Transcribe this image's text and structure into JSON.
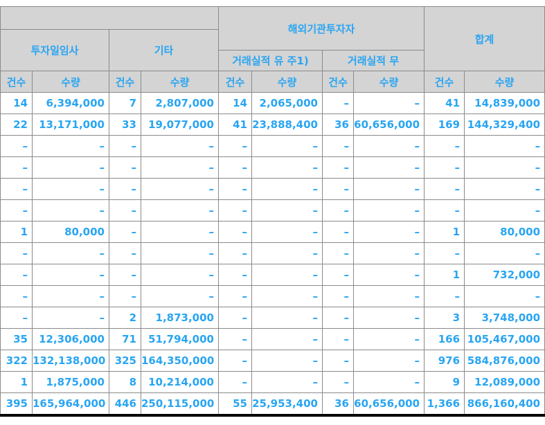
{
  "colors": {
    "accent_text": "#29a5f2",
    "header_background": "#d4d4d4",
    "grid_border": "#8a8a8a",
    "bottom_border": "#000000"
  },
  "table": {
    "header": {
      "groups": {
        "discretionary": "투자일임사",
        "other": "기타",
        "foreign": "해외기관투자자",
        "total": "합계"
      },
      "subgroups": {
        "with_record": "거래실적 유 주1)",
        "no_record": "거래실적 무"
      },
      "count_label": "건수",
      "qty_label": "수량"
    },
    "rows": [
      [
        "14",
        "6,394,000",
        "7",
        "2,807,000",
        "14",
        "2,065,000",
        "–",
        "–",
        "41",
        "14,839,000"
      ],
      [
        "22",
        "13,171,000",
        "33",
        "19,077,000",
        "41",
        "23,888,400",
        "36",
        "60,656,000",
        "169",
        "144,329,400"
      ],
      [
        "–",
        "–",
        "–",
        "–",
        "–",
        "–",
        "–",
        "–",
        "–",
        "–"
      ],
      [
        "–",
        "–",
        "–",
        "–",
        "–",
        "–",
        "–",
        "–",
        "–",
        "–"
      ],
      [
        "–",
        "–",
        "–",
        "–",
        "–",
        "–",
        "–",
        "–",
        "–",
        "–"
      ],
      [
        "–",
        "–",
        "–",
        "–",
        "–",
        "–",
        "–",
        "–",
        "–",
        "–"
      ],
      [
        "1",
        "80,000",
        "–",
        "–",
        "–",
        "–",
        "–",
        "–",
        "1",
        "80,000"
      ],
      [
        "–",
        "–",
        "–",
        "–",
        "–",
        "–",
        "–",
        "–",
        "–",
        "–"
      ],
      [
        "–",
        "–",
        "–",
        "–",
        "–",
        "–",
        "–",
        "–",
        "1",
        "732,000"
      ],
      [
        "–",
        "–",
        "–",
        "–",
        "–",
        "–",
        "–",
        "–",
        "–",
        "–"
      ],
      [
        "–",
        "–",
        "2",
        "1,873,000",
        "–",
        "–",
        "–",
        "–",
        "3",
        "3,748,000"
      ],
      [
        "35",
        "12,306,000",
        "71",
        "51,794,000",
        "–",
        "–",
        "–",
        "–",
        "166",
        "105,467,000"
      ],
      [
        "322",
        "132,138,000",
        "325",
        "164,350,000",
        "–",
        "–",
        "–",
        "–",
        "976",
        "584,876,000"
      ],
      [
        "1",
        "1,875,000",
        "8",
        "10,214,000",
        "–",
        "–",
        "–",
        "–",
        "9",
        "12,089,000"
      ],
      [
        "395",
        "165,964,000",
        "446",
        "250,115,000",
        "55",
        "25,953,400",
        "36",
        "60,656,000",
        "1,366",
        "866,160,400"
      ]
    ]
  }
}
